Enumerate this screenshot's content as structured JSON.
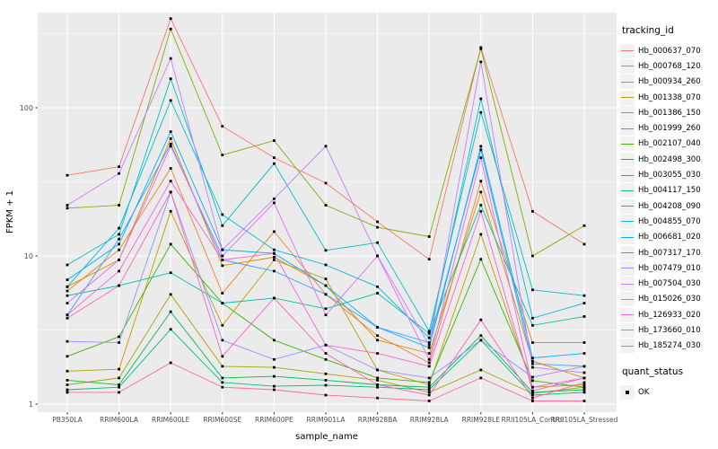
{
  "figure": {
    "y_axis_title": "FPKM + 1",
    "x_axis_title": "sample_name",
    "tracking_legend_title": "tracking_id",
    "quant_legend_title": "quant_status",
    "quant_legend_label": "OK",
    "panel_bg": "#EBEBEB",
    "grid_color": "#FFFFFF",
    "tick_label_color": "#4d4d4d",
    "point_color": "#000000"
  },
  "chart_data": {
    "type": "line",
    "title": "",
    "xlabel": "sample_name",
    "ylabel": "FPKM + 1",
    "y_scale": "log10",
    "y_tick_values": [
      1,
      10,
      100
    ],
    "y_minor_values": [
      3.162,
      31.62,
      316.2
    ],
    "ylim": [
      0.9,
      440
    ],
    "grid": true,
    "legend_position": "right",
    "point_marker": "black square = quant_status OK",
    "categories": [
      "PB350LA",
      "RRIM600LA",
      "RRIM600LE",
      "RRIM600SE",
      "RRIM600PE",
      "RRIM901LA",
      "RRIM928BA",
      "RRIM928LA",
      "RRIM928LE",
      "RRII105LA_Control",
      "RRII105LA_Stressed"
    ],
    "series": [
      {
        "name": "Hb_000637_070",
        "color": "#F8766D",
        "values": [
          35,
          40,
          400,
          75,
          46,
          31,
          17,
          9.5,
          255,
          20,
          12
        ]
      },
      {
        "name": "Hb_000768_120",
        "color": "#EA8331",
        "values": [
          5.8,
          11,
          39,
          5.6,
          14.6,
          5.5,
          2.9,
          1.9,
          32,
          2.6,
          2.6
        ]
      },
      {
        "name": "Hb_000934_260",
        "color": "#D89000",
        "values": [
          6.2,
          9.4,
          62,
          8.6,
          9.8,
          6.3,
          2.7,
          2.2,
          27,
          1.95,
          1.5
        ]
      },
      {
        "name": "Hb_001338_070",
        "color": "#C09B00",
        "values": [
          1.67,
          1.72,
          20,
          3.4,
          9.4,
          7.0,
          1.7,
          1.35,
          14,
          1.3,
          1.35
        ]
      },
      {
        "name": "Hb_001386_150",
        "color": "#A3A500",
        "values": [
          1.35,
          1.5,
          5.5,
          1.8,
          1.77,
          1.6,
          1.45,
          1.2,
          1.7,
          1.18,
          1.3
        ]
      },
      {
        "name": "Hb_001999_260",
        "color": "#7CAE00",
        "values": [
          21,
          22,
          340,
          48,
          60,
          22,
          15.6,
          13.5,
          250,
          10,
          16
        ]
      },
      {
        "name": "Hb_002107_040",
        "color": "#39B600",
        "values": [
          2.1,
          2.85,
          12,
          4.8,
          2.7,
          2.0,
          1.5,
          1.4,
          9.5,
          1.44,
          1.3
        ]
      },
      {
        "name": "Hb_002498_300",
        "color": "#00BB4E",
        "values": [
          1.45,
          1.35,
          4.2,
          1.5,
          1.54,
          1.45,
          1.35,
          1.3,
          2.9,
          1.2,
          1.25
        ]
      },
      {
        "name": "Hb_003055_030",
        "color": "#00BF7D",
        "values": [
          1.25,
          1.3,
          3.2,
          1.4,
          1.32,
          1.34,
          1.3,
          1.25,
          2.7,
          1.15,
          1.2
        ]
      },
      {
        "name": "Hb_004117_150",
        "color": "#00C1A3",
        "values": [
          5.4,
          6.3,
          7.7,
          4.8,
          5.2,
          4.4,
          5.6,
          3.0,
          22,
          3.4,
          3.9
        ]
      },
      {
        "name": "Hb_004208_090",
        "color": "#00BFC4",
        "values": [
          8.7,
          14,
          157,
          16,
          42,
          10.9,
          12.3,
          3.1,
          93,
          5.9,
          5.4
        ]
      },
      {
        "name": "Hb_004855_070",
        "color": "#00BAE0",
        "values": [
          6.2,
          15.4,
          112,
          19,
          11,
          8.7,
          6.2,
          2.8,
          115,
          3.8,
          4.8
        ]
      },
      {
        "name": "Hb_006681_020",
        "color": "#00B0F6",
        "values": [
          6.9,
          12,
          69,
          11,
          10.4,
          6.3,
          3.3,
          2.4,
          55,
          2.05,
          2.2
        ]
      },
      {
        "name": "Hb_007317_170",
        "color": "#35A2FF",
        "values": [
          4.0,
          13,
          57,
          9.4,
          7.9,
          5.5,
          3.3,
          2.6,
          52,
          1.87,
          1.8
        ]
      },
      {
        "name": "Hb_007479_010",
        "color": "#9590FF",
        "values": [
          2.65,
          2.6,
          27,
          2.7,
          2.0,
          2.5,
          1.7,
          1.5,
          2.7,
          1.52,
          1.8
        ]
      },
      {
        "name": "Hb_007504_030",
        "color": "#C77CFF",
        "values": [
          22,
          36,
          215,
          11,
          24.3,
          55,
          10,
          2.5,
          204,
          1.77,
          1.63
        ]
      },
      {
        "name": "Hb_015026_030",
        "color": "#E76BF3",
        "values": [
          4.8,
          9.4,
          55,
          10,
          22.8,
          4.0,
          10,
          2.0,
          46,
          1.3,
          1.5
        ]
      },
      {
        "name": "Hb_126933_020",
        "color": "#FA62DB",
        "values": [
          4.0,
          7.9,
          32,
          9.4,
          10.4,
          2.5,
          2.2,
          1.8,
          20,
          1.23,
          1.5
        ]
      },
      {
        "name": "Hb_173660_010",
        "color": "#FF62BC",
        "values": [
          3.8,
          6.3,
          27,
          2.1,
          5.2,
          2.2,
          1.35,
          1.15,
          3.7,
          1.1,
          1.4
        ]
      },
      {
        "name": "Hb_185274_030",
        "color": "#FF6A98",
        "values": [
          1.2,
          1.2,
          1.9,
          1.3,
          1.25,
          1.15,
          1.1,
          1.05,
          1.5,
          1.05,
          1.05
        ]
      }
    ]
  }
}
